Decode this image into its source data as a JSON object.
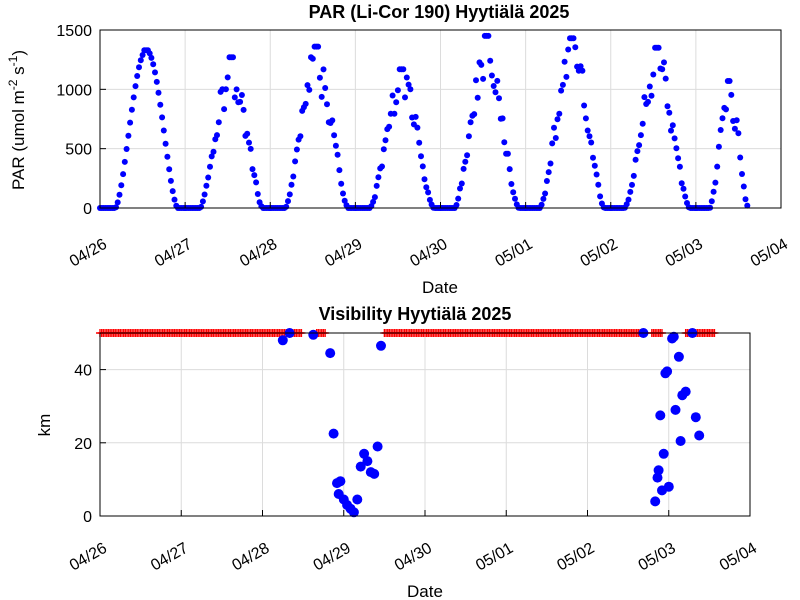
{
  "colors": {
    "marker": "#0000ff",
    "flag": "#ff0000"
  },
  "chart_data": [
    {
      "type": "scatter",
      "title": "PAR (Li-Cor 190) Hyytiälä 2025",
      "xlabel": "Date",
      "ylabel_main": "PAR (umol m",
      "ylabel_sup1": "-2",
      "ylabel_mid": " s",
      "ylabel_sup2": "-1",
      "ylabel_end": ")",
      "x_ticks": [
        "04/26",
        "04/27",
        "04/28",
        "04/29",
        "04/30",
        "05/01",
        "05/02",
        "05/03",
        "05/04"
      ],
      "y_ticks": [
        "0",
        "500",
        "1000",
        "1500"
      ],
      "xlim": [
        "2025-04-26",
        "2025-05-04"
      ],
      "ylim": [
        0,
        1500
      ],
      "grid": true,
      "series": [
        {
          "marker": "dot",
          "color": "#0000ff",
          "days": [
            {
              "date": "2025-04-26",
              "sunrise": 4.3,
              "sunset": 21.9,
              "peak": 1330
            },
            {
              "date": "2025-04-27",
              "sunrise": 4.2,
              "sunset": 21.9,
              "peak": 1270
            },
            {
              "date": "2025-04-28",
              "sunrise": 4.2,
              "sunset": 22.0,
              "peak": 1360
            },
            {
              "date": "2025-04-29",
              "sunrise": 4.1,
              "sunset": 22.1,
              "peak": 1170
            },
            {
              "date": "2025-04-30",
              "sunrise": 4.0,
              "sunset": 22.1,
              "peak": 1450
            },
            {
              "date": "2025-05-01",
              "sunrise": 4.0,
              "sunset": 22.2,
              "peak": 1430
            },
            {
              "date": "2025-05-02",
              "sunrise": 3.9,
              "sunset": 22.2,
              "peak": 1350
            },
            {
              "date": "2025-05-03",
              "sunrise": 3.9,
              "sunset": 14.8,
              "peak": 1070
            }
          ]
        }
      ]
    },
    {
      "type": "scatter",
      "title": "Visibility Hyytiälä 2025",
      "xlabel": "Date",
      "ylabel": "km",
      "x_ticks": [
        "04/26",
        "04/27",
        "04/28",
        "04/29",
        "04/30",
        "05/01",
        "05/02",
        "05/03",
        "05/04"
      ],
      "y_ticks": [
        "0",
        "20",
        "40"
      ],
      "xlim": [
        "2025-04-26",
        "2025-05-04"
      ],
      "ylim": [
        0,
        50
      ],
      "grid": true,
      "flag_series": {
        "marker": "+",
        "color": "#ff0000",
        "value": 50,
        "ranges": [
          [
            "2025-04-26T00:00",
            "2025-04-28T11:30"
          ],
          [
            "2025-04-28T16:00",
            "2025-04-28T18:30"
          ],
          [
            "2025-04-29T12:00",
            "2025-05-02T17:00"
          ],
          [
            "2025-05-02T19:00",
            "2025-05-02T22:00"
          ],
          [
            "2025-05-03T05:00",
            "2025-05-03T13:40"
          ]
        ]
      },
      "points": [
        {
          "x": "2025-04-28T06:00",
          "y": 48
        },
        {
          "x": "2025-04-28T08:00",
          "y": 50
        },
        {
          "x": "2025-04-28T15:00",
          "y": 49.5
        },
        {
          "x": "2025-04-28T20:00",
          "y": 44.5
        },
        {
          "x": "2025-04-28T21:00",
          "y": 22.5
        },
        {
          "x": "2025-04-28T22:00",
          "y": 9
        },
        {
          "x": "2025-04-28T22:30",
          "y": 6
        },
        {
          "x": "2025-04-28T23:00",
          "y": 9.5
        },
        {
          "x": "2025-04-29T00:00",
          "y": 4.5
        },
        {
          "x": "2025-04-29T01:00",
          "y": 3
        },
        {
          "x": "2025-04-29T02:00",
          "y": 2
        },
        {
          "x": "2025-04-29T03:00",
          "y": 1
        },
        {
          "x": "2025-04-29T04:00",
          "y": 4.5
        },
        {
          "x": "2025-04-29T05:00",
          "y": 13.5
        },
        {
          "x": "2025-04-29T06:00",
          "y": 17
        },
        {
          "x": "2025-04-29T07:00",
          "y": 15
        },
        {
          "x": "2025-04-29T08:00",
          "y": 12
        },
        {
          "x": "2025-04-29T09:00",
          "y": 11.5
        },
        {
          "x": "2025-04-29T10:00",
          "y": 19
        },
        {
          "x": "2025-04-29T11:00",
          "y": 46.5
        },
        {
          "x": "2025-05-02T16:30",
          "y": 50
        },
        {
          "x": "2025-05-02T20:00",
          "y": 4
        },
        {
          "x": "2025-05-02T20:40",
          "y": 10.5
        },
        {
          "x": "2025-05-02T21:00",
          "y": 12.5
        },
        {
          "x": "2025-05-02T21:30",
          "y": 27.5
        },
        {
          "x": "2025-05-02T22:00",
          "y": 7
        },
        {
          "x": "2025-05-02T22:30",
          "y": 17
        },
        {
          "x": "2025-05-02T23:00",
          "y": 39
        },
        {
          "x": "2025-05-02T23:30",
          "y": 39.5
        },
        {
          "x": "2025-05-03T00:00",
          "y": 8
        },
        {
          "x": "2025-05-03T01:00",
          "y": 48.5
        },
        {
          "x": "2025-05-03T01:30",
          "y": 49
        },
        {
          "x": "2025-05-03T02:00",
          "y": 29
        },
        {
          "x": "2025-05-03T03:00",
          "y": 43.5
        },
        {
          "x": "2025-05-03T03:30",
          "y": 20.5
        },
        {
          "x": "2025-05-03T04:00",
          "y": 33
        },
        {
          "x": "2025-05-03T05:00",
          "y": 34
        },
        {
          "x": "2025-05-03T07:00",
          "y": 50
        },
        {
          "x": "2025-05-03T08:00",
          "y": 27
        },
        {
          "x": "2025-05-03T09:00",
          "y": 22
        }
      ]
    }
  ]
}
